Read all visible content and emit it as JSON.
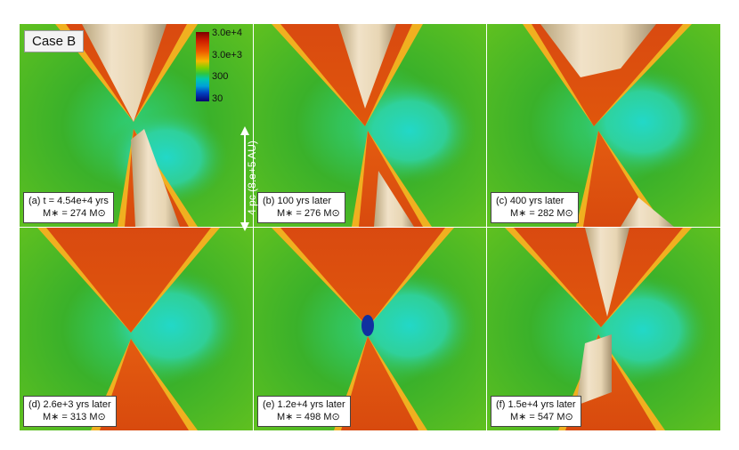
{
  "case_label": "Case B",
  "colorbar": {
    "ticks": [
      "3.0e+4",
      "3.0e+3",
      "300",
      "30"
    ]
  },
  "scale_bar": {
    "text": "4 pc (8.e+5 AU)"
  },
  "panels": [
    {
      "line1": "(a) t = 4.54e+4 yrs",
      "line2": "M∗ = 274 M⊙"
    },
    {
      "line1": "(b) 100 yrs later",
      "line2": "M∗ = 276 M⊙"
    },
    {
      "line1": "(c) 400 yrs later",
      "line2": "M∗ = 282 M⊙"
    },
    {
      "line1": "(d) 2.6e+3 yrs later",
      "line2": "M∗ = 313 M⊙"
    },
    {
      "line1": "(e) 1.2e+4 yrs later",
      "line2": "M∗ = 498 M⊙"
    },
    {
      "line1": "(f) 1.5e+4 yrs later",
      "line2": "M∗ = 547 M⊙"
    }
  ]
}
